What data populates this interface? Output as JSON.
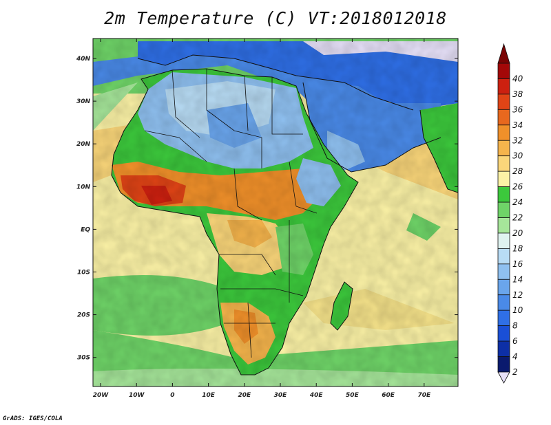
{
  "title": "2m Temperature (C) VT:2018012018",
  "credit": "GrADS: IGES/COLA",
  "x_ticks": [
    "20W",
    "10W",
    "0",
    "10E",
    "20E",
    "30E",
    "40E",
    "50E",
    "60E",
    "70E"
  ],
  "y_ticks": [
    "40N",
    "30N",
    "20N",
    "10N",
    "EQ",
    "10S",
    "20S",
    "30S"
  ],
  "colorbar": {
    "levels": [
      2,
      4,
      6,
      8,
      10,
      12,
      14,
      16,
      18,
      20,
      22,
      24,
      26,
      28,
      30,
      32,
      34,
      36,
      38,
      40
    ],
    "colors": [
      "#0a1a6e",
      "#0d2fa6",
      "#1a4fd6",
      "#2f6fe6",
      "#4a8ae8",
      "#6aa5ec",
      "#8fc0f0",
      "#b8dcf5",
      "#dff3f0",
      "#a6e69a",
      "#6fd468",
      "#3cc83c",
      "#fbf2a6",
      "#fad67a",
      "#f5b44c",
      "#f0902a",
      "#e8681e",
      "#e04416",
      "#cc2010",
      "#a30808",
      "#7a0404"
    ],
    "under_color": "#e6e0f8"
  },
  "regions": [
    {
      "name": "africa-land",
      "color": "#3cc83c"
    },
    {
      "name": "sahara",
      "color": "#b8dcf5"
    },
    {
      "name": "europe",
      "color": "#4a8ae8"
    },
    {
      "name": "west-africa-hot",
      "color": "#f0902a"
    }
  ]
}
